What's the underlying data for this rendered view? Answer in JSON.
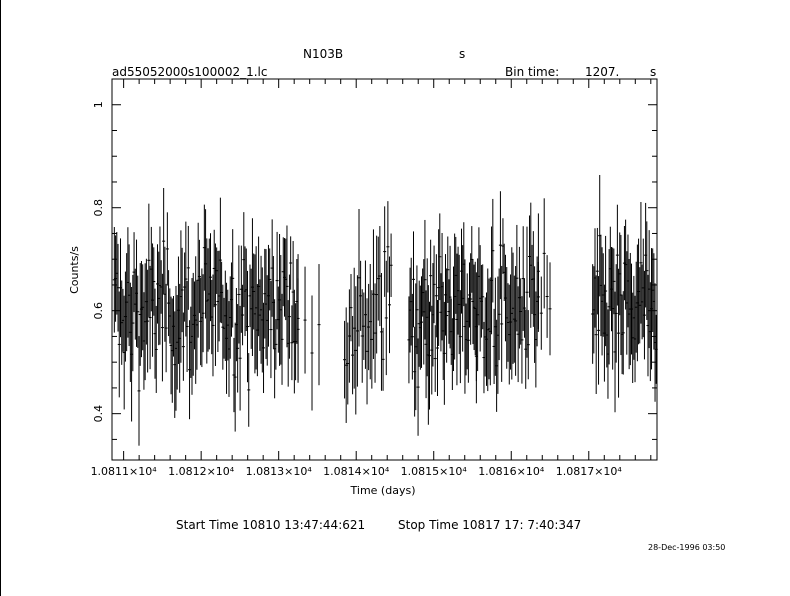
{
  "header": {
    "object": "N103B",
    "unit_label": "s",
    "filename": "ad55052000s100002_1.lc",
    "bin_time_label": "Bin time:",
    "bin_time_value": "1207.",
    "bin_time_unit": "s"
  },
  "footer": {
    "start_time": "Start Time 10810 13:47:44:621",
    "stop_time": "Stop Time 10817 17: 7:40:347",
    "timestamp": "28-Dec-1996 03:50"
  },
  "chart_data": {
    "type": "scatter",
    "xlabel": "Time (days)",
    "ylabel": "Counts/s",
    "xlim": [
      10810.85,
      10817.88
    ],
    "ylim": [
      0.31,
      1.05
    ],
    "x_ticks": [
      10811,
      10812,
      10813,
      10814,
      10815,
      10816,
      10817
    ],
    "x_tick_labels": [
      "1.0811×10⁴",
      "1.0812×10⁴",
      "1.0813×10⁴",
      "1.0814×10⁴",
      "1.0815×10⁴",
      "1.0816×10⁴",
      "1.0817×10⁴"
    ],
    "y_ticks": [
      0.4,
      0.6,
      0.8,
      1.0
    ],
    "y_tick_labels": [
      "0.4",
      "0.6",
      "0.8",
      "1"
    ],
    "grid": false,
    "segments": [
      {
        "x_start": 10810.88,
        "x_end": 10813.25,
        "n": 150
      },
      {
        "x_start": 10813.25,
        "x_end": 10813.52,
        "n": 4
      },
      {
        "x_start": 10813.85,
        "x_end": 10814.45,
        "n": 30
      },
      {
        "x_start": 10814.68,
        "x_end": 10815.55,
        "n": 60
      },
      {
        "x_start": 10815.55,
        "x_end": 10816.35,
        "n": 50
      },
      {
        "x_start": 10816.35,
        "x_end": 10816.5,
        "n": 5
      },
      {
        "x_start": 10817.05,
        "x_end": 10817.87,
        "n": 55
      }
    ],
    "rate_mean": 0.6,
    "rate_spread": 0.06,
    "error_mean": 0.09,
    "error_spread": 0.03
  }
}
